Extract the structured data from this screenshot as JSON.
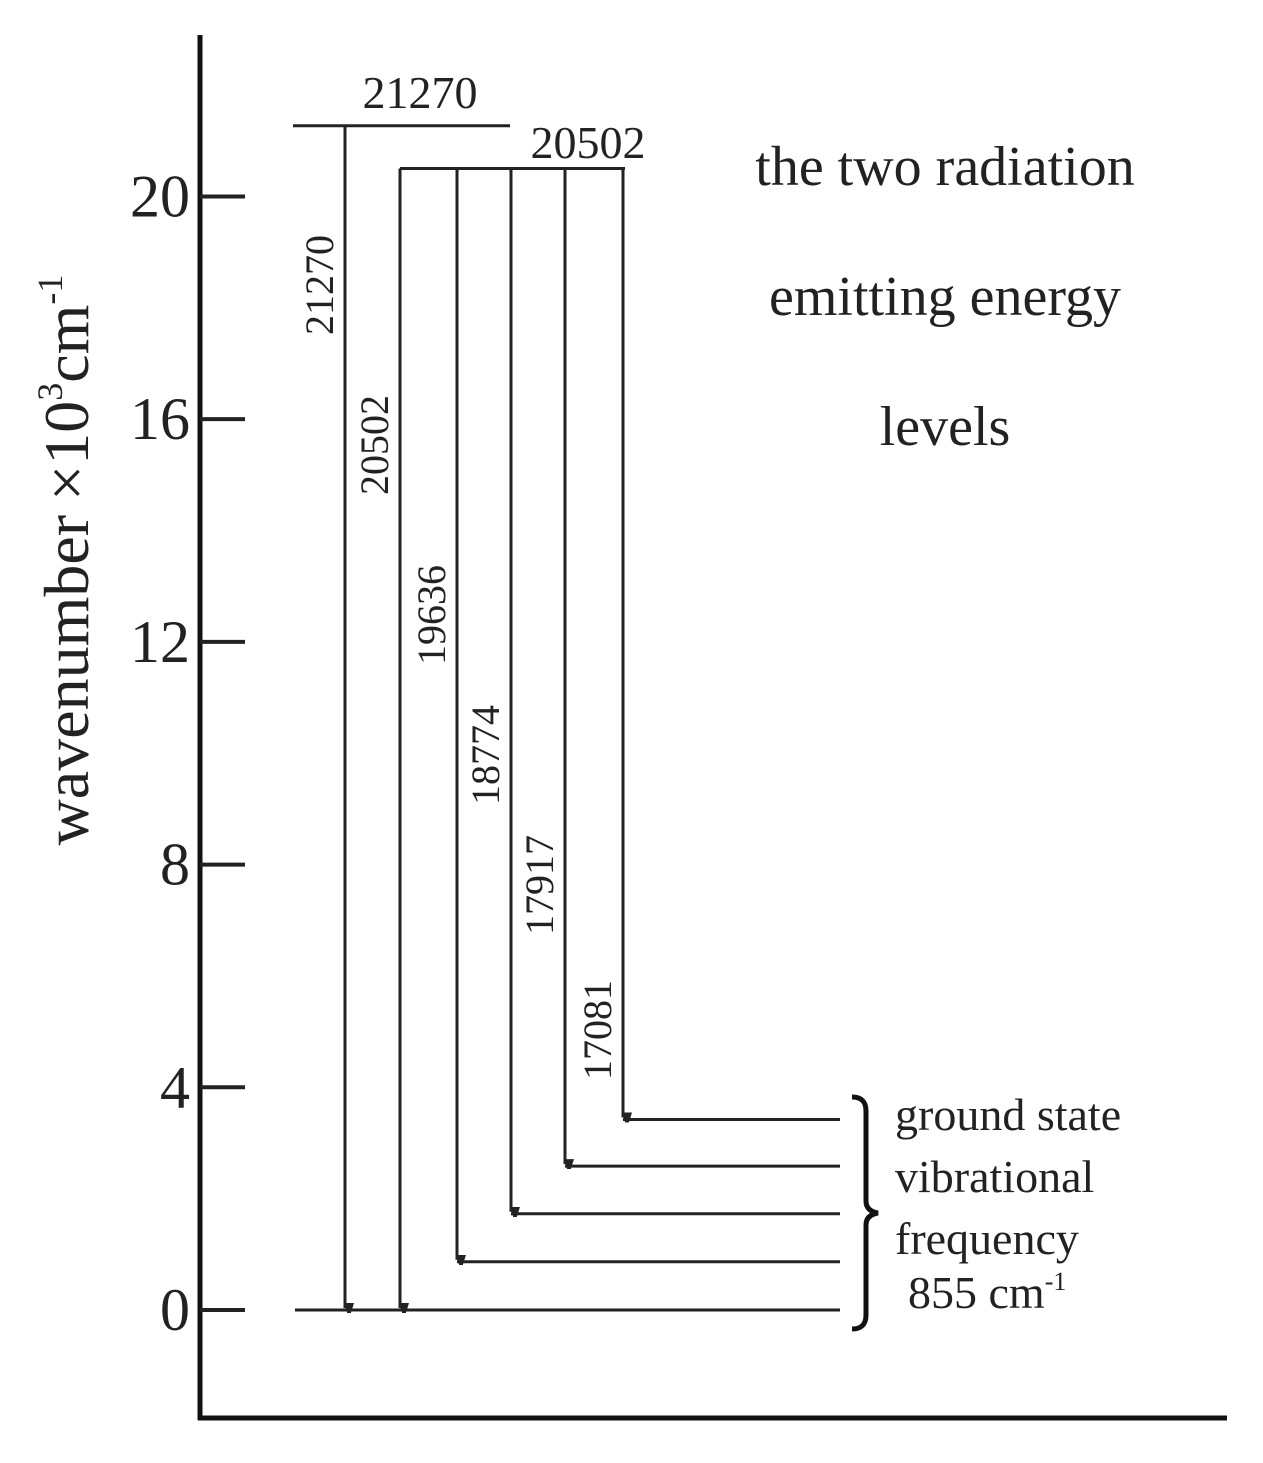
{
  "axis": {
    "label": "wavenumber",
    "multiplier": "×10",
    "exponent": "3",
    "unit": "cm",
    "unit_exponent": "-1",
    "ylim": [
      -1.94,
      22.9
    ],
    "yticks": [
      0,
      4,
      8,
      12,
      16,
      20
    ]
  },
  "excited_levels": [
    {
      "label": "21270",
      "value": 21.27
    },
    {
      "label": "20502",
      "value": 20.502
    }
  ],
  "ground_levels": [
    {
      "value": 0
    },
    {
      "value": 0.866
    },
    {
      "value": 1.728
    },
    {
      "value": 2.585
    },
    {
      "value": 3.421
    }
  ],
  "transitions": [
    {
      "label": "21270",
      "from": 0,
      "to": 0
    },
    {
      "label": "20502",
      "from": 1,
      "to": 0
    },
    {
      "label": "19636",
      "from": 1,
      "to": 1
    },
    {
      "label": "18774",
      "from": 1,
      "to": 2
    },
    {
      "label": "17917",
      "from": 1,
      "to": 3
    },
    {
      "label": "17081",
      "from": 1,
      "to": 4
    }
  ],
  "title_lines": [
    "the two radiation",
    "emitting energy",
    "levels"
  ],
  "note": {
    "lines": [
      "ground state",
      "vibrational",
      "frequency"
    ],
    "value": "855 cm",
    "value_exponent": "-1"
  }
}
